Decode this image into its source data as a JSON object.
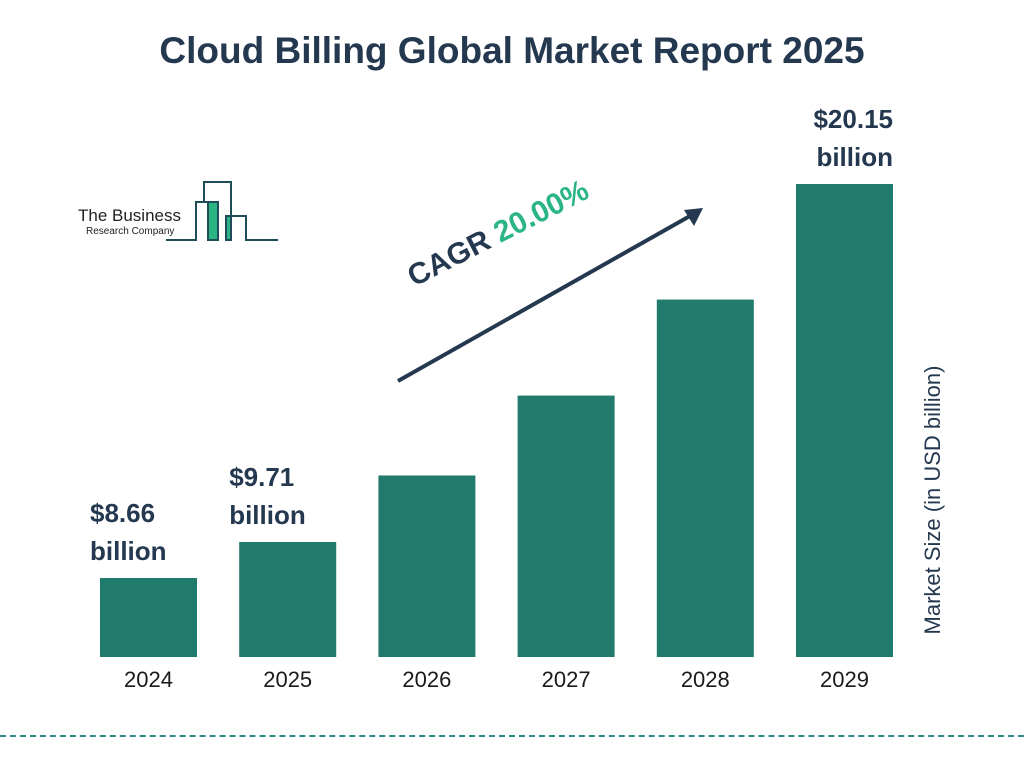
{
  "chart_data": {
    "type": "bar",
    "title": "Cloud Billing Global Market Report 2025",
    "xlabel": "",
    "ylabel": "Market Size (in USD billion)",
    "categories": [
      "2024",
      "2025",
      "2026",
      "2027",
      "2028",
      "2029"
    ],
    "values": [
      8.66,
      9.71,
      11.65,
      13.98,
      16.78,
      20.15
    ],
    "data_labels": [
      {
        "index": 0,
        "line1": "$8.66",
        "line2": "billion"
      },
      {
        "index": 1,
        "line1": "$9.71",
        "line2": "billion"
      },
      {
        "index": 5,
        "line1": "$20.15",
        "line2": "billion"
      }
    ],
    "annotation": {
      "label": "CAGR",
      "value": "20.00%"
    },
    "grid": false,
    "bar_color": "#217b6c",
    "accent_color": "#2bb585"
  },
  "logo": {
    "line1": "The Business",
    "line2": "Research Company"
  }
}
